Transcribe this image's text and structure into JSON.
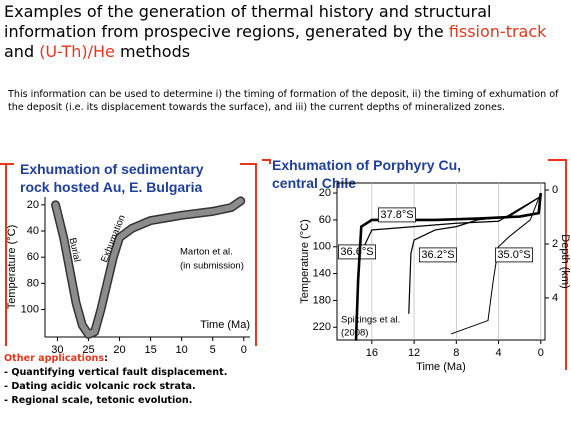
{
  "title": [
    "Examples of the generation of thermal history and structural information from prospecive regions, generated by the ",
    "fission-track",
    " and ",
    "(U-Th)/He",
    " methods"
  ],
  "intro": "This information can be used to determine i) the timing of formation of the deposit, ii) the timing of exhumation of the deposit (i.e. its displacement towards the surface), and iii) the current depths of mineralized zones.",
  "chart_data": [
    {
      "type": "line",
      "title": "Exhumation of sedimentary rock hosted Au, E. Bulgaria",
      "x_label": "Time (Ma)",
      "y_label": "Temperature (°C)",
      "x": [
        30.3,
        29,
        28,
        27,
        26,
        25,
        24,
        23,
        22,
        21,
        20,
        18,
        15,
        10,
        5,
        2,
        0.5
      ],
      "values": [
        20,
        45,
        70,
        95,
        112,
        119,
        117,
        100,
        80,
        60,
        45,
        38,
        32,
        28,
        25,
        22,
        17
      ],
      "color": "#8c8c8c",
      "xlim": [
        -1,
        32
      ],
      "x_inverted": true,
      "xticks": [
        30,
        25,
        20,
        15,
        10,
        5,
        0
      ],
      "ylim": [
        14,
        121
      ],
      "y_inverted": true,
      "yticks": [
        20,
        40,
        60,
        80,
        100
      ],
      "annotations": [
        "Burial",
        "Exhumation",
        "Marton et al.",
        "(in submission)"
      ]
    },
    {
      "type": "line",
      "title": "Exhumation of Porphyry Cu, central Chile",
      "x_label": "Time (Ma)",
      "y_label": "Temperature (°C)",
      "y2_label": "Depth (km)",
      "series": [
        {
          "name": "36.6°S",
          "color": "#000000",
          "x": [
            17.5,
            17.2,
            16.6,
            16,
            12,
            8,
            4,
            0
          ],
          "values": [
            235,
            120,
            95,
            75,
            70,
            65,
            62,
            25
          ]
        },
        {
          "name": "37.8°S",
          "color": "#000000",
          "x": [
            17.5,
            17.3,
            17,
            16,
            10,
            6,
            2,
            0.2,
            0
          ],
          "values": [
            240,
            150,
            70,
            60,
            60,
            58,
            55,
            50,
            20
          ]
        },
        {
          "name": "36.2°S",
          "color": "#000000",
          "x": [
            12.5,
            12.3,
            12,
            10,
            8,
            6,
            3,
            0
          ],
          "values": [
            200,
            110,
            90,
            75,
            70,
            60,
            55,
            25
          ]
        },
        {
          "name": "35.0°S",
          "color": "#000000",
          "x": [
            8.5,
            5,
            4.5,
            4,
            3,
            1,
            0
          ],
          "values": [
            230,
            210,
            150,
            100,
            85,
            60,
            20
          ]
        }
      ],
      "xlim": [
        -0.4,
        19.3
      ],
      "x_inverted": true,
      "xticks": [
        16,
        12,
        8,
        4,
        0
      ],
      "ylim": [
        5,
        239
      ],
      "y_inverted": true,
      "yticks": [
        20,
        60,
        100,
        140,
        180,
        220
      ],
      "y2lim": [
        -0.26,
        5.56
      ],
      "y2ticks": [
        0,
        2,
        4
      ],
      "grid": true,
      "annotations": [
        "Spikings et al.",
        "(2008)"
      ]
    }
  ],
  "other_applications": {
    "heading": [
      "Other applications",
      ":"
    ],
    "items": [
      "- Quantifying vertical fault displacement.",
      "- Dating acidic volcanic rock strata.",
      "- Regional scale, tetonic evolution."
    ]
  }
}
